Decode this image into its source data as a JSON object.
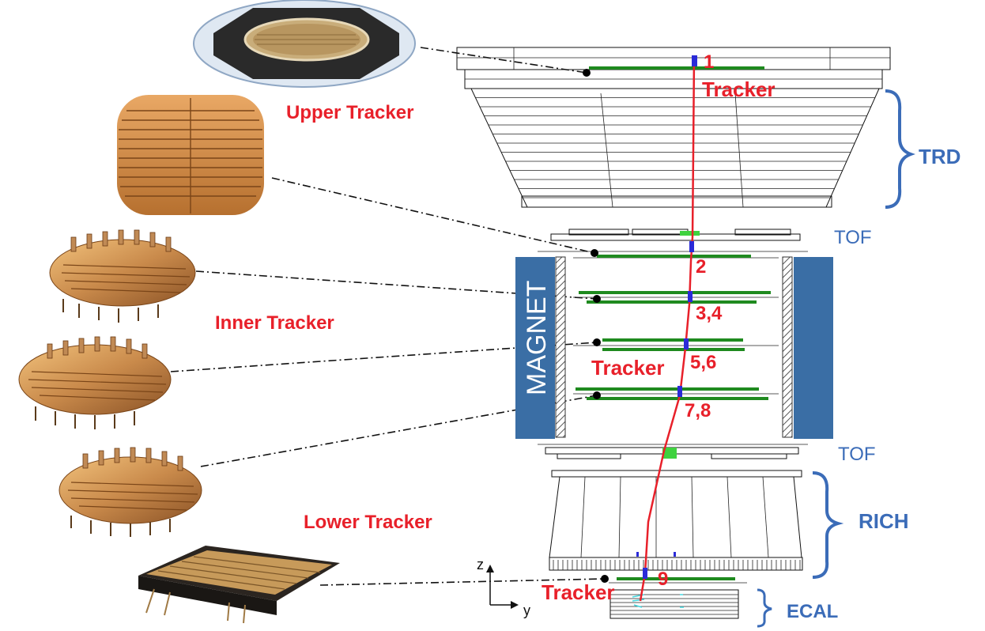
{
  "labels": {
    "upper_tracker": "Upper Tracker",
    "inner_tracker": "Inner Tracker",
    "lower_tracker": "Lower Tracker",
    "tracker_top": "Tracker",
    "tracker_middle": "Tracker",
    "tracker_bottom": "Tracker",
    "magnet": "MAGNET",
    "trd": "TRD",
    "tof_upper": "TOF",
    "tof_lower": "TOF",
    "rich": "RICH",
    "ecal": "ECAL",
    "axis_z": "z",
    "axis_y": "y"
  },
  "layers": {
    "l1": "1",
    "l2": "2",
    "l34": "3,4",
    "l56": "5,6",
    "l78": "7,8",
    "l9": "9"
  },
  "colors": {
    "label_red": "#e8202a",
    "label_blue": "#3b6cb8",
    "magnet_blue": "#3a6ea5",
    "ladder_green": "#1f8a1f",
    "hit_blue": "#2a2ad8",
    "track_red": "#e8202a",
    "module_copper": "#c98a4b"
  }
}
